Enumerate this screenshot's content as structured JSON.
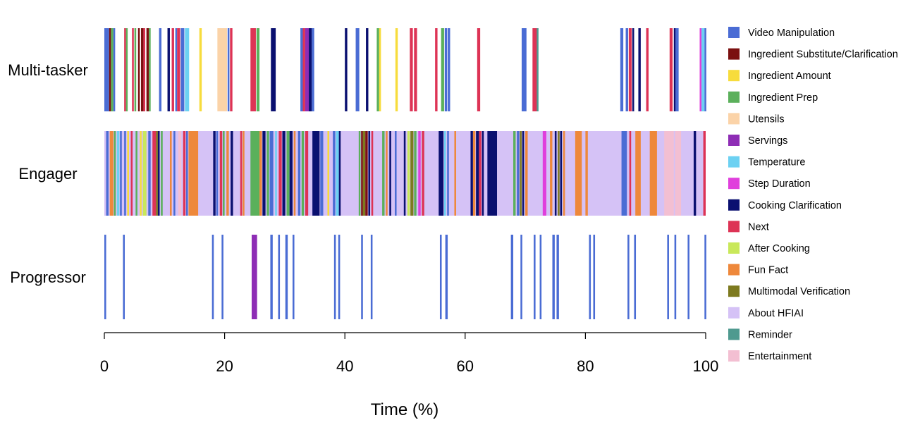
{
  "chart_data": {
    "type": "event-timeline",
    "xlabel": "Time (%)",
    "xlim": [
      0,
      100
    ],
    "xticks": [
      0,
      20,
      40,
      60,
      80,
      100
    ],
    "legend_position": "right",
    "categories": [
      {
        "name": "Video Manipulation",
        "color": "#4a6cd4"
      },
      {
        "name": "Ingredient Substitute/Clarification",
        "color": "#7b1010"
      },
      {
        "name": "Ingredient Amount",
        "color": "#f7dc3c"
      },
      {
        "name": "Ingredient Prep",
        "color": "#5bb05b"
      },
      {
        "name": "Utensils",
        "color": "#fbd3a8"
      },
      {
        "name": "Servings",
        "color": "#8e2db5"
      },
      {
        "name": "Temperature",
        "color": "#6cd1f2"
      },
      {
        "name": "Step Duration",
        "color": "#e03fdc"
      },
      {
        "name": "Cooking Clarification",
        "color": "#0a1070"
      },
      {
        "name": "Next",
        "color": "#dd3355"
      },
      {
        "name": "After Cooking",
        "color": "#c9e85a"
      },
      {
        "name": "Fun Fact",
        "color": "#ee883b"
      },
      {
        "name": "Multimodal Verification",
        "color": "#7d7a1f"
      },
      {
        "name": "About HFIAI",
        "color": "#d5c2f6"
      },
      {
        "name": "Reminder",
        "color": "#4f9a8f"
      },
      {
        "name": "Entertainment",
        "color": "#f3bfd2"
      }
    ],
    "rows": [
      {
        "label": "Multi-tasker",
        "events": [
          [
            0,
            0.8,
            0
          ],
          [
            0.8,
            0.3,
            1
          ],
          [
            1.1,
            0.4,
            3
          ],
          [
            1.5,
            0.3,
            0
          ],
          [
            3.3,
            0.3,
            9
          ],
          [
            3.6,
            0.2,
            3
          ],
          [
            4.6,
            0.3,
            9
          ],
          [
            5.0,
            0.3,
            3
          ],
          [
            5.6,
            0.3,
            1
          ],
          [
            6.1,
            0.4,
            1
          ],
          [
            6.5,
            0.3,
            9
          ],
          [
            7.0,
            0.4,
            1
          ],
          [
            7.4,
            0.3,
            3
          ],
          [
            9.1,
            0.4,
            0
          ],
          [
            10.5,
            0.4,
            8
          ],
          [
            11.2,
            0.4,
            9
          ],
          [
            11.8,
            0.3,
            0
          ],
          [
            12.1,
            0.5,
            9
          ],
          [
            12.7,
            0.6,
            0
          ],
          [
            13.4,
            0.7,
            6
          ],
          [
            15.8,
            0.4,
            2
          ],
          [
            18.8,
            1.6,
            4
          ],
          [
            20.5,
            0.3,
            0
          ],
          [
            20.9,
            0.4,
            9
          ],
          [
            24.3,
            0.9,
            9
          ],
          [
            25.3,
            0.5,
            3
          ],
          [
            27.7,
            0.8,
            8
          ],
          [
            32.6,
            0.4,
            0
          ],
          [
            33.0,
            0.4,
            9
          ],
          [
            33.4,
            0.6,
            5
          ],
          [
            34.0,
            0.5,
            8
          ],
          [
            34.5,
            0.4,
            0
          ],
          [
            40.0,
            0.4,
            8
          ],
          [
            41.8,
            0.6,
            0
          ],
          [
            43.5,
            0.4,
            8
          ],
          [
            45.3,
            0.4,
            3
          ],
          [
            45.7,
            0.3,
            2
          ],
          [
            48.4,
            0.4,
            2
          ],
          [
            50.8,
            0.5,
            9
          ],
          [
            51.5,
            0.5,
            9
          ],
          [
            55.0,
            0.4,
            9
          ],
          [
            56.0,
            0.5,
            3
          ],
          [
            56.6,
            0.4,
            0
          ],
          [
            57.1,
            0.4,
            0
          ],
          [
            62.0,
            0.5,
            9
          ],
          [
            69.4,
            0.8,
            0
          ],
          [
            71.2,
            0.8,
            9
          ],
          [
            71.9,
            0.3,
            14
          ],
          [
            85.8,
            0.5,
            0
          ],
          [
            86.7,
            0.4,
            0
          ],
          [
            87.2,
            0.5,
            9
          ],
          [
            87.8,
            0.3,
            8
          ],
          [
            88.8,
            0.4,
            8
          ],
          [
            90.1,
            0.4,
            9
          ],
          [
            94.0,
            0.5,
            9
          ],
          [
            94.7,
            0.3,
            8
          ],
          [
            95.0,
            0.5,
            0
          ],
          [
            99.0,
            0.3,
            7
          ],
          [
            99.3,
            0.5,
            6
          ],
          [
            99.8,
            0.3,
            0
          ]
        ]
      },
      {
        "label": "Engager",
        "events": [
          [
            0,
            100,
            13
          ],
          [
            0.3,
            0.4,
            0
          ],
          [
            0.9,
            0.6,
            11
          ],
          [
            1.6,
            0.3,
            3
          ],
          [
            2.1,
            0.4,
            6
          ],
          [
            2.6,
            0.3,
            0
          ],
          [
            3.3,
            0.3,
            0
          ],
          [
            3.8,
            0.3,
            2
          ],
          [
            4.4,
            0.3,
            9
          ],
          [
            5.2,
            0.3,
            3
          ],
          [
            5.9,
            0.3,
            2
          ],
          [
            6.4,
            0.6,
            10
          ],
          [
            7.3,
            0.4,
            0
          ],
          [
            8.0,
            0.6,
            9
          ],
          [
            8.6,
            0.3,
            12
          ],
          [
            8.9,
            0.3,
            8
          ],
          [
            9.4,
            0.3,
            3
          ],
          [
            10.9,
            0.3,
            11
          ],
          [
            11.5,
            0.3,
            0
          ],
          [
            12.3,
            0.5,
            15
          ],
          [
            13.1,
            0.4,
            9
          ],
          [
            13.6,
            0.3,
            0
          ],
          [
            14.0,
            1.6,
            11
          ],
          [
            18.1,
            0.4,
            8
          ],
          [
            18.6,
            0.3,
            0
          ],
          [
            19.2,
            0.4,
            9
          ],
          [
            19.7,
            0.3,
            3
          ],
          [
            20.3,
            0.4,
            11
          ],
          [
            21.0,
            0.4,
            8
          ],
          [
            22.6,
            0.3,
            9
          ],
          [
            23.0,
            0.3,
            11
          ],
          [
            24.3,
            1.5,
            3
          ],
          [
            25.8,
            0.4,
            11
          ],
          [
            26.3,
            0.5,
            8
          ],
          [
            27.0,
            0.4,
            3
          ],
          [
            27.5,
            0.6,
            0
          ],
          [
            28.4,
            0.3,
            6
          ],
          [
            29.0,
            0.5,
            9
          ],
          [
            29.6,
            0.5,
            8
          ],
          [
            30.3,
            0.5,
            3
          ],
          [
            30.8,
            0.5,
            8
          ],
          [
            31.5,
            0.3,
            11
          ],
          [
            32.2,
            0.4,
            0
          ],
          [
            32.8,
            0.4,
            3
          ],
          [
            33.4,
            0.5,
            9
          ],
          [
            34.6,
            1.2,
            8
          ],
          [
            35.9,
            0.5,
            0
          ],
          [
            37.1,
            0.3,
            2
          ],
          [
            38.0,
            0.4,
            0
          ],
          [
            38.5,
            0.5,
            6
          ],
          [
            39.0,
            0.3,
            8
          ],
          [
            42.3,
            0.3,
            3
          ],
          [
            42.7,
            0.3,
            1
          ],
          [
            43.0,
            0.4,
            12
          ],
          [
            43.4,
            0.4,
            1
          ],
          [
            43.9,
            0.3,
            8
          ],
          [
            44.4,
            0.3,
            9
          ],
          [
            46.2,
            0.4,
            3
          ],
          [
            46.8,
            0.3,
            11
          ],
          [
            47.4,
            0.3,
            8
          ],
          [
            48.3,
            0.3,
            0
          ],
          [
            49.8,
            0.3,
            8
          ],
          [
            50.4,
            0.4,
            10
          ],
          [
            50.9,
            0.5,
            12
          ],
          [
            51.5,
            0.4,
            3
          ],
          [
            52.2,
            0.4,
            7
          ],
          [
            52.8,
            0.4,
            9
          ],
          [
            55.6,
            0.8,
            8
          ],
          [
            56.5,
            0.3,
            6
          ],
          [
            57.0,
            0.3,
            0
          ],
          [
            58.2,
            0.3,
            11
          ],
          [
            60.9,
            0.4,
            8
          ],
          [
            61.3,
            0.4,
            11
          ],
          [
            61.8,
            0.5,
            8
          ],
          [
            62.3,
            0.4,
            9
          ],
          [
            62.8,
            0.3,
            8
          ],
          [
            63.7,
            1.6,
            8
          ],
          [
            68.0,
            0.4,
            3
          ],
          [
            68.6,
            0.4,
            0
          ],
          [
            69.1,
            0.3,
            12
          ],
          [
            69.5,
            0.3,
            8
          ],
          [
            70.0,
            0.4,
            11
          ],
          [
            72.9,
            0.6,
            7
          ],
          [
            74.1,
            0.4,
            11
          ],
          [
            74.9,
            0.3,
            8
          ],
          [
            75.4,
            0.3,
            12
          ],
          [
            75.8,
            0.3,
            8
          ],
          [
            76.3,
            0.3,
            11
          ],
          [
            78.3,
            1.1,
            11
          ],
          [
            80.0,
            0.4,
            11
          ],
          [
            86.0,
            0.9,
            0
          ],
          [
            87.3,
            0.3,
            9
          ],
          [
            88.3,
            0.9,
            11
          ],
          [
            90.7,
            1.2,
            11
          ],
          [
            93.1,
            1.6,
            15
          ],
          [
            94.9,
            1.0,
            15
          ],
          [
            98.0,
            0.4,
            8
          ],
          [
            99.6,
            0.4,
            9
          ]
        ]
      },
      {
        "label": "Progressor",
        "events": [
          [
            0,
            0.3,
            0
          ],
          [
            3.1,
            0.3,
            0
          ],
          [
            17.9,
            0.3,
            0
          ],
          [
            19.5,
            0.3,
            0
          ],
          [
            24.5,
            0.9,
            5
          ],
          [
            27.6,
            0.4,
            0
          ],
          [
            28.9,
            0.3,
            0
          ],
          [
            30.1,
            0.4,
            0
          ],
          [
            31.3,
            0.3,
            0
          ],
          [
            38.2,
            0.3,
            0
          ],
          [
            38.9,
            0.3,
            0
          ],
          [
            42.7,
            0.3,
            0
          ],
          [
            44.3,
            0.3,
            0
          ],
          [
            55.8,
            0.3,
            0
          ],
          [
            56.7,
            0.4,
            0
          ],
          [
            67.6,
            0.4,
            0
          ],
          [
            69.2,
            0.3,
            0
          ],
          [
            71.4,
            0.3,
            0
          ],
          [
            72.4,
            0.3,
            0
          ],
          [
            74.5,
            0.4,
            0
          ],
          [
            75.2,
            0.4,
            0
          ],
          [
            80.6,
            0.3,
            0
          ],
          [
            81.3,
            0.3,
            0
          ],
          [
            87.0,
            0.3,
            0
          ],
          [
            88.1,
            0.3,
            0
          ],
          [
            93.6,
            0.3,
            0
          ],
          [
            94.8,
            0.3,
            0
          ],
          [
            97.0,
            0.3,
            0
          ],
          [
            99.8,
            0.3,
            0
          ]
        ]
      }
    ]
  }
}
